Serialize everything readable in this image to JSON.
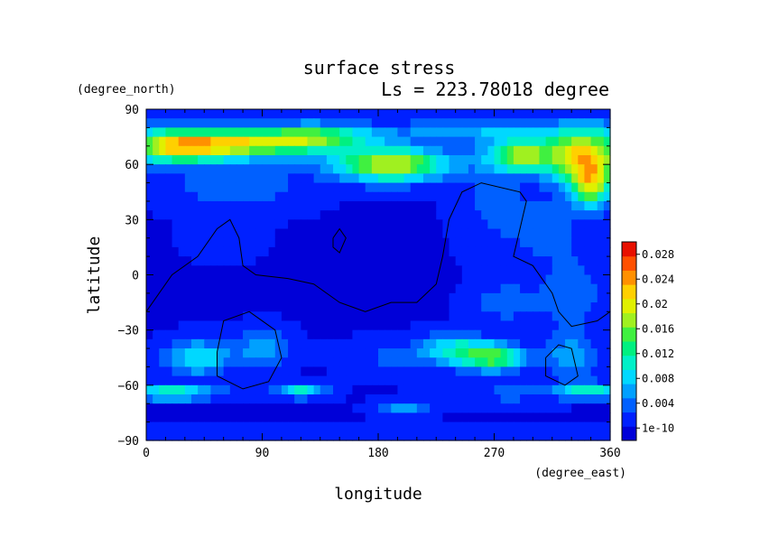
{
  "chart_data": {
    "type": "heatmap",
    "title": "surface stress",
    "subtitle": "Ls = 223.78018 degree",
    "xlabel": "longitude",
    "ylabel": "latitude",
    "x_unit": "(degree_east)",
    "y_unit": "(degree_north)",
    "xlim": [
      0,
      360
    ],
    "ylim": [
      -90,
      90
    ],
    "x_ticks": [
      "0",
      "90",
      "180",
      "270",
      "360"
    ],
    "y_ticks": [
      "90",
      "60",
      "30",
      "0",
      "−30",
      "−60",
      "−90"
    ],
    "colorbar": {
      "min": 0,
      "max": 0.03,
      "labels": [
        "0.028",
        "0.024",
        "0.02",
        "0.016",
        "0.012",
        "0.008",
        "0.004",
        "1e-10"
      ],
      "colors": [
        "#0000d8",
        "#0020ff",
        "#0060ff",
        "#00a0ff",
        "#00d8ff",
        "#00f0c8",
        "#00f080",
        "#40f040",
        "#a0f020",
        "#e0f000",
        "#ffd000",
        "#ff9000",
        "#ff5000",
        "#e81000"
      ]
    },
    "background_level": 0.002,
    "blobs": [
      {
        "lon": 25,
        "lat": 70,
        "dlon": 45,
        "dlat": 9,
        "v": 0.02
      },
      {
        "lon": 90,
        "lat": 72,
        "dlon": 50,
        "dlat": 8,
        "v": 0.015
      },
      {
        "lon": 140,
        "lat": 75,
        "dlon": 40,
        "dlat": 7,
        "v": 0.01
      },
      {
        "lon": 190,
        "lat": 60,
        "dlon": 45,
        "dlat": 9,
        "v": 0.018
      },
      {
        "lon": 290,
        "lat": 65,
        "dlon": 25,
        "dlat": 9,
        "v": 0.015
      },
      {
        "lon": 340,
        "lat": 65,
        "dlon": 30,
        "dlat": 15,
        "v": 0.02
      },
      {
        "lon": 345,
        "lat": 48,
        "dlon": 15,
        "dlat": 12,
        "v": 0.014
      },
      {
        "lon": 250,
        "lat": 78,
        "dlon": 60,
        "dlat": 6,
        "v": 0.006
      },
      {
        "lon": 70,
        "lat": 48,
        "dlon": 50,
        "dlat": 12,
        "v": 0.004
      },
      {
        "lon": 270,
        "lat": 40,
        "dlon": 25,
        "dlat": 25,
        "v": 0.003
      },
      {
        "lon": 40,
        "lat": -45,
        "dlon": 25,
        "dlat": 9,
        "v": 0.009
      },
      {
        "lon": 90,
        "lat": -40,
        "dlon": 20,
        "dlat": 10,
        "v": 0.006
      },
      {
        "lon": 270,
        "lat": -45,
        "dlon": 25,
        "dlat": 7,
        "v": 0.014
      },
      {
        "lon": 240,
        "lat": -40,
        "dlon": 25,
        "dlat": 8,
        "v": 0.008
      },
      {
        "lon": 200,
        "lat": -45,
        "dlon": 40,
        "dlat": 9,
        "v": 0.003
      },
      {
        "lon": 330,
        "lat": -45,
        "dlon": 20,
        "dlat": 12,
        "v": 0.006
      },
      {
        "lon": 20,
        "lat": -64,
        "dlon": 35,
        "dlat": 4,
        "v": 0.011
      },
      {
        "lon": 120,
        "lat": -63,
        "dlon": 20,
        "dlat": 4,
        "v": 0.009
      },
      {
        "lon": 345,
        "lat": -63,
        "dlon": 25,
        "dlat": 4,
        "v": 0.01
      },
      {
        "lon": 200,
        "lat": -73,
        "dlon": 20,
        "dlat": 4,
        "v": 0.006
      },
      {
        "lon": 280,
        "lat": -65,
        "dlon": 45,
        "dlat": 5,
        "v": 0.003
      },
      {
        "lon": 280,
        "lat": -15,
        "dlon": 25,
        "dlat": 10,
        "v": 0.004
      },
      {
        "lon": 330,
        "lat": -10,
        "dlon": 25,
        "dlat": 20,
        "v": 0.004
      },
      {
        "lon": 310,
        "lat": 25,
        "dlon": 25,
        "dlat": 15,
        "v": 0.004
      },
      {
        "lon": 60,
        "lat": 20,
        "dlon": 25,
        "dlat": 10,
        "v": 0.002
      }
    ],
    "contours": [
      [
        [
          0,
          -20
        ],
        [
          20,
          0
        ],
        [
          40,
          10
        ],
        [
          55,
          25
        ],
        [
          65,
          30
        ],
        [
          72,
          20
        ],
        [
          75,
          5
        ],
        [
          85,
          0
        ],
        [
          110,
          -2
        ],
        [
          130,
          -5
        ],
        [
          150,
          -15
        ],
        [
          170,
          -20
        ],
        [
          190,
          -15
        ],
        [
          210,
          -15
        ],
        [
          225,
          -5
        ],
        [
          230,
          10
        ],
        [
          235,
          30
        ],
        [
          245,
          45
        ],
        [
          260,
          50
        ],
        [
          290,
          45
        ],
        [
          295,
          40
        ],
        [
          285,
          10
        ],
        [
          300,
          5
        ],
        [
          315,
          -10
        ],
        [
          320,
          -20
        ],
        [
          330,
          -28
        ],
        [
          350,
          -25
        ],
        [
          360,
          -20
        ]
      ],
      [
        [
          55,
          -42
        ],
        [
          60,
          -25
        ],
        [
          80,
          -20
        ],
        [
          100,
          -30
        ],
        [
          105,
          -45
        ],
        [
          95,
          -58
        ],
        [
          75,
          -62
        ],
        [
          55,
          -55
        ],
        [
          55,
          -42
        ]
      ],
      [
        [
          145,
          20
        ],
        [
          150,
          25
        ],
        [
          155,
          20
        ],
        [
          150,
          12
        ],
        [
          145,
          15
        ],
        [
          145,
          20
        ]
      ],
      [
        [
          310,
          -45
        ],
        [
          320,
          -38
        ],
        [
          330,
          -40
        ],
        [
          335,
          -55
        ],
        [
          325,
          -60
        ],
        [
          310,
          -55
        ],
        [
          310,
          -45
        ]
      ]
    ]
  }
}
